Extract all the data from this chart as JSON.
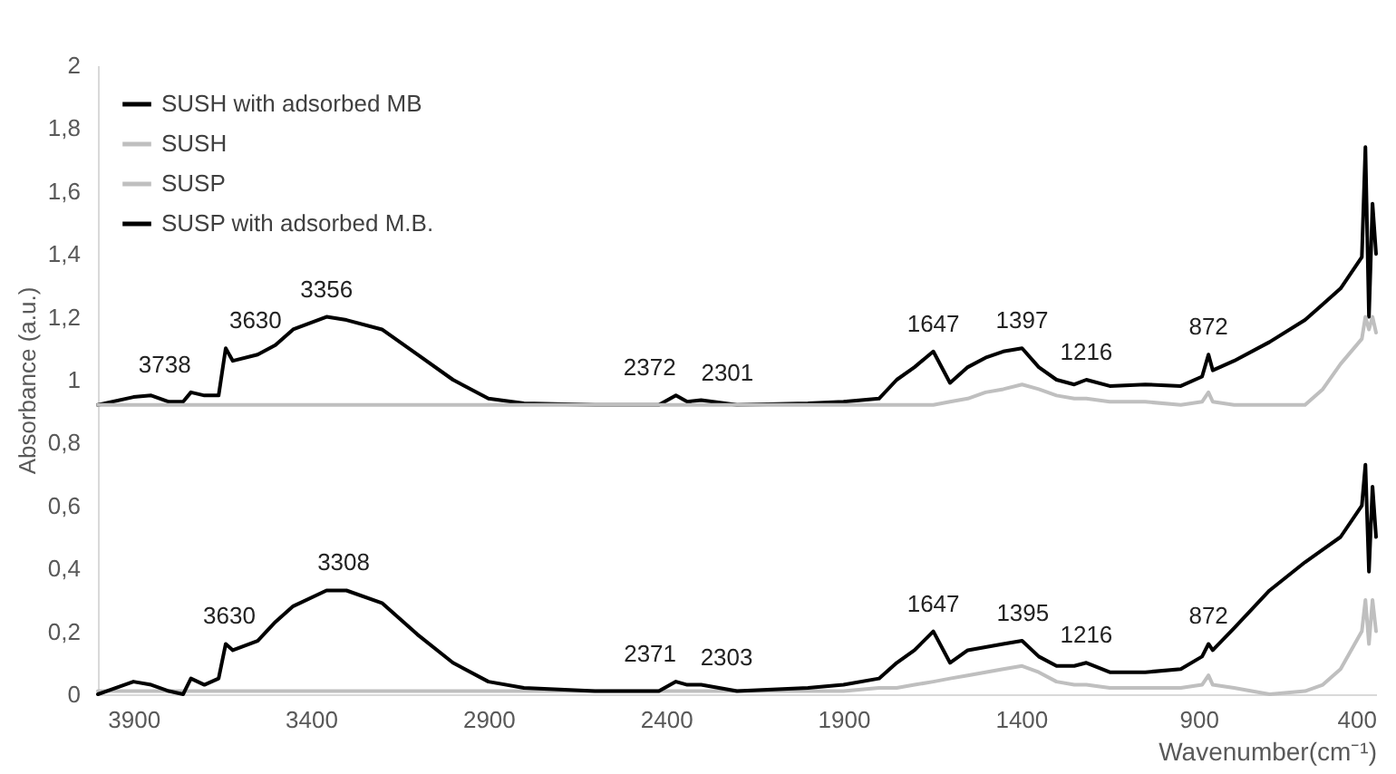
{
  "chart_data": {
    "type": "line",
    "xlabel": "Wavenumber(cm⁻¹)",
    "ylabel": "Absorbance (a.u.)",
    "xlim": [
      4000,
      400
    ],
    "xticks": [
      3900,
      3400,
      2900,
      2400,
      1900,
      1400,
      900,
      400
    ],
    "ylim": [
      0,
      2
    ],
    "yticks": [
      {
        "value": 0,
        "label": "0"
      },
      {
        "value": 0.2,
        "label": "0,2"
      },
      {
        "value": 0.4,
        "label": "0,4"
      },
      {
        "value": 0.6,
        "label": "0,6"
      },
      {
        "value": 0.8,
        "label": "0,8"
      },
      {
        "value": 1,
        "label": "1"
      },
      {
        "value": 1.2,
        "label": "1,2"
      },
      {
        "value": 1.4,
        "label": "1,4"
      },
      {
        "value": 1.6,
        "label": "1,6"
      },
      {
        "value": 1.8,
        "label": "1,8"
      },
      {
        "value": 2,
        "label": "2"
      }
    ],
    "x": [
      4000,
      3900,
      3850,
      3800,
      3760,
      3738,
      3700,
      3660,
      3640,
      3620,
      3550,
      3500,
      3450,
      3356,
      3300,
      3200,
      3100,
      3000,
      2900,
      2800,
      2600,
      2420,
      2372,
      2340,
      2301,
      2200,
      2000,
      1900,
      1800,
      1750,
      1700,
      1647,
      1600,
      1550,
      1500,
      1450,
      1397,
      1350,
      1300,
      1250,
      1216,
      1150,
      1050,
      950,
      890,
      872,
      860,
      800,
      700,
      600,
      550,
      500,
      440,
      430,
      420,
      410,
      400
    ],
    "series": [
      {
        "name": "SUSH with adsorbed MB",
        "color": "#000000",
        "values": [
          0.92,
          0.945,
          0.95,
          0.93,
          0.93,
          0.96,
          0.95,
          0.95,
          1.1,
          1.06,
          1.08,
          1.11,
          1.16,
          1.2,
          1.19,
          1.16,
          1.08,
          1.0,
          0.94,
          0.925,
          0.92,
          0.92,
          0.95,
          0.93,
          0.935,
          0.92,
          0.925,
          0.93,
          0.94,
          1.0,
          1.04,
          1.09,
          0.99,
          1.04,
          1.07,
          1.09,
          1.1,
          1.04,
          1.0,
          0.985,
          1.0,
          0.98,
          0.985,
          0.98,
          1.01,
          1.08,
          1.03,
          1.06,
          1.12,
          1.19,
          1.24,
          1.29,
          1.39,
          1.74,
          1.2,
          1.56,
          1.4
        ]
      },
      {
        "name": "SUSH",
        "color": "#bfbfbf",
        "values": [
          0.92,
          0.92,
          0.92,
          0.92,
          0.92,
          0.92,
          0.92,
          0.92,
          0.92,
          0.92,
          0.92,
          0.92,
          0.92,
          0.92,
          0.92,
          0.92,
          0.92,
          0.92,
          0.92,
          0.92,
          0.92,
          0.92,
          0.92,
          0.92,
          0.92,
          0.92,
          0.92,
          0.92,
          0.92,
          0.92,
          0.92,
          0.92,
          0.93,
          0.94,
          0.96,
          0.97,
          0.985,
          0.97,
          0.95,
          0.94,
          0.94,
          0.93,
          0.93,
          0.92,
          0.93,
          0.96,
          0.93,
          0.92,
          0.92,
          0.92,
          0.97,
          1.05,
          1.13,
          1.2,
          1.16,
          1.2,
          1.15
        ]
      },
      {
        "name": "SUSP",
        "color": "#bfbfbf",
        "values": [
          0.01,
          0.01,
          0.01,
          0.01,
          0.01,
          0.01,
          0.01,
          0.01,
          0.01,
          0.01,
          0.01,
          0.01,
          0.01,
          0.01,
          0.01,
          0.01,
          0.01,
          0.01,
          0.01,
          0.01,
          0.01,
          0.01,
          0.01,
          0.01,
          0.01,
          0.01,
          0.01,
          0.01,
          0.02,
          0.02,
          0.03,
          0.04,
          0.05,
          0.06,
          0.07,
          0.08,
          0.09,
          0.07,
          0.04,
          0.03,
          0.03,
          0.02,
          0.02,
          0.02,
          0.03,
          0.06,
          0.03,
          0.02,
          0.0,
          0.01,
          0.03,
          0.08,
          0.2,
          0.3,
          0.16,
          0.3,
          0.2
        ]
      },
      {
        "name": "SUSP with adsorbed M.B.",
        "color": "#000000",
        "values": [
          0.0,
          0.04,
          0.03,
          0.01,
          0.0,
          0.05,
          0.03,
          0.05,
          0.16,
          0.14,
          0.17,
          0.23,
          0.28,
          0.33,
          0.33,
          0.29,
          0.19,
          0.1,
          0.04,
          0.02,
          0.01,
          0.01,
          0.04,
          0.03,
          0.03,
          0.01,
          0.02,
          0.03,
          0.05,
          0.1,
          0.14,
          0.2,
          0.1,
          0.14,
          0.15,
          0.16,
          0.17,
          0.12,
          0.09,
          0.09,
          0.1,
          0.07,
          0.07,
          0.08,
          0.12,
          0.16,
          0.14,
          0.21,
          0.33,
          0.42,
          0.46,
          0.5,
          0.6,
          0.73,
          0.39,
          0.66,
          0.5
        ]
      }
    ],
    "annotations": [
      {
        "text": "3738",
        "x": 3738,
        "y": 0.96
      },
      {
        "text": "3630",
        "x": 3630,
        "y": 1.1
      },
      {
        "text": "3356",
        "x": 3356,
        "y": 1.2
      },
      {
        "text": "2372",
        "x": 2372,
        "y": 0.95
      },
      {
        "text": "2301",
        "x": 2301,
        "y": 0.935
      },
      {
        "text": "1647",
        "x": 1647,
        "y": 1.09
      },
      {
        "text": "1397",
        "x": 1397,
        "y": 1.1
      },
      {
        "text": "1216",
        "x": 1216,
        "y": 1.0
      },
      {
        "text": "872",
        "x": 872,
        "y": 1.08
      },
      {
        "text": "3630",
        "x": 3630,
        "y": 0.16
      },
      {
        "text": "3308",
        "x": 3308,
        "y": 0.33
      },
      {
        "text": "2371",
        "x": 2371,
        "y": 0.04
      },
      {
        "text": "2303",
        "x": 2303,
        "y": 0.03
      },
      {
        "text": "1647",
        "x": 1647,
        "y": 0.2
      },
      {
        "text": "1395",
        "x": 1395,
        "y": 0.17
      },
      {
        "text": "1216",
        "x": 1216,
        "y": 0.1
      },
      {
        "text": "872",
        "x": 872,
        "y": 0.16
      }
    ],
    "legend": "top left",
    "marker": "none",
    "line_style": "solid"
  }
}
